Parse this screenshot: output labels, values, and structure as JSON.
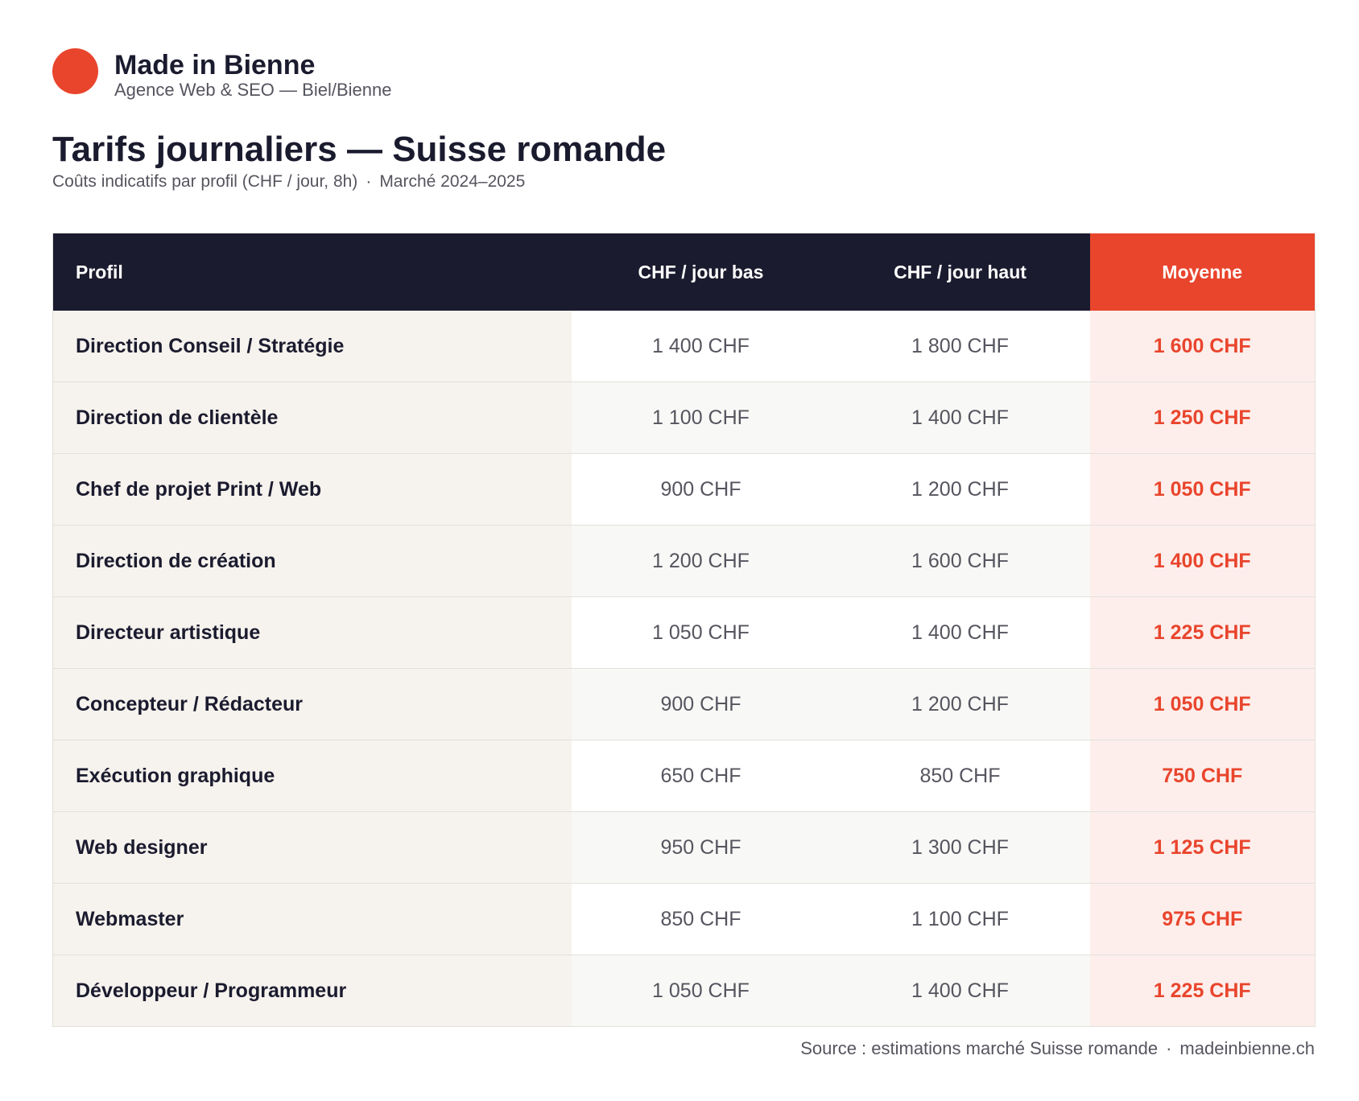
{
  "brand": {
    "name": "Made in Bienne",
    "tagline": "Agence Web & SEO — Biel/Bienne",
    "color": "#e9452d"
  },
  "header": {
    "title": "Tarifs journaliers — Suisse romande",
    "subtitle_part1": "Coûts indicatifs par profil (CHF / jour, 8h)",
    "subtitle_separator": "·",
    "subtitle_part2": "Marché 2024–2025"
  },
  "footer": {
    "source": "Source : estimations marché Suisse romande",
    "separator": "·",
    "site": "madeinbienne.ch"
  },
  "chart_data": {
    "type": "table",
    "title": "Tarifs journaliers — Suisse romande",
    "subtitle": "Coûts indicatifs par profil (CHF / jour, 8h) · Marché 2024–2025",
    "columns": [
      "Profil",
      "CHF / jour bas",
      "CHF / jour haut",
      "Moyenne"
    ],
    "rows": [
      {
        "profile": "Direction Conseil / Stratégie",
        "low": "1 400 CHF",
        "high": "1 800 CHF",
        "avg": "1 600 CHF"
      },
      {
        "profile": "Direction de clientèle",
        "low": "1 100 CHF",
        "high": "1 400 CHF",
        "avg": "1 250 CHF"
      },
      {
        "profile": "Chef de projet Print / Web",
        "low": "900 CHF",
        "high": "1 200 CHF",
        "avg": "1 050 CHF"
      },
      {
        "profile": "Direction de création",
        "low": "1 200 CHF",
        "high": "1 600 CHF",
        "avg": "1 400 CHF"
      },
      {
        "profile": "Directeur artistique",
        "low": "1 050 CHF",
        "high": "1 400 CHF",
        "avg": "1 225 CHF"
      },
      {
        "profile": "Concepteur / Rédacteur",
        "low": "900 CHF",
        "high": "1 200 CHF",
        "avg": "1 050 CHF"
      },
      {
        "profile": "Exécution graphique",
        "low": "650 CHF",
        "high": "850 CHF",
        "avg": "750 CHF"
      },
      {
        "profile": "Web designer",
        "low": "950 CHF",
        "high": "1 300 CHF",
        "avg": "1 125 CHF"
      },
      {
        "profile": "Webmaster",
        "low": "850 CHF",
        "high": "1 100 CHF",
        "avg": "975 CHF"
      },
      {
        "profile": "Développeur / Programmeur",
        "low": "1 050 CHF",
        "high": "1 400 CHF",
        "avg": "1 225 CHF"
      }
    ],
    "colors": {
      "header_bg": "#1b1b2f",
      "accent": "#e9452d",
      "accent_light": "#fdeeeb",
      "profile_bg": "#f6f2ed"
    }
  }
}
